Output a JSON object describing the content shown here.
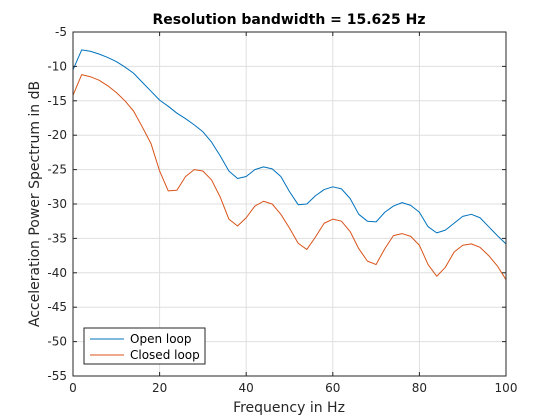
{
  "chart_data": {
    "type": "line",
    "title": "Resolution bandwidth = 15.625 Hz",
    "xlabel": "Frequency in Hz",
    "ylabel": "Acceleration Power Spectrum in dB",
    "xlim": [
      0,
      100
    ],
    "ylim": [
      -55,
      -5
    ],
    "xticks": [
      0,
      20,
      40,
      60,
      80,
      100
    ],
    "yticks": [
      -55,
      -50,
      -45,
      -40,
      -35,
      -30,
      -25,
      -20,
      -15,
      -10,
      -5
    ],
    "grid": true,
    "legend_position": "bottom-left",
    "series": [
      {
        "name": "Open loop",
        "color": "#0072BD",
        "x": [
          0,
          2,
          4,
          6,
          8,
          10,
          12,
          14,
          16,
          18,
          20,
          22,
          24,
          26,
          28,
          30,
          32,
          34,
          36,
          38,
          40,
          42,
          44,
          46,
          48,
          50,
          52,
          54,
          56,
          58,
          60,
          62,
          64,
          66,
          68,
          70,
          72,
          74,
          76,
          78,
          80,
          82,
          84,
          86,
          88,
          90,
          92,
          94,
          96,
          98,
          100
        ],
        "y": [
          -10.5,
          -7.6,
          -7.8,
          -8.2,
          -8.7,
          -9.3,
          -10.1,
          -11.0,
          -12.3,
          -13.6,
          -14.9,
          -15.8,
          -16.8,
          -17.6,
          -18.5,
          -19.5,
          -21.0,
          -23.0,
          -25.2,
          -26.3,
          -26.0,
          -25.0,
          -24.6,
          -24.9,
          -26.0,
          -28.2,
          -30.1,
          -30.0,
          -28.8,
          -27.9,
          -27.5,
          -27.8,
          -29.2,
          -31.5,
          -32.5,
          -32.6,
          -31.2,
          -30.3,
          -29.8,
          -30.2,
          -31.2,
          -33.3,
          -34.2,
          -33.8,
          -32.8,
          -31.8,
          -31.5,
          -32.0,
          -33.3,
          -34.6,
          -35.8
        ]
      },
      {
        "name": "Closed loop",
        "color": "#D95319",
        "x": [
          0,
          2,
          4,
          6,
          8,
          10,
          12,
          14,
          16,
          18,
          20,
          22,
          24,
          26,
          28,
          30,
          32,
          34,
          36,
          38,
          40,
          42,
          44,
          46,
          48,
          50,
          52,
          54,
          56,
          58,
          60,
          62,
          64,
          66,
          68,
          70,
          72,
          74,
          76,
          78,
          80,
          82,
          84,
          86,
          88,
          90,
          92,
          94,
          96,
          98,
          100
        ],
        "y": [
          -14.2,
          -11.2,
          -11.5,
          -12.0,
          -12.8,
          -13.8,
          -15.0,
          -16.5,
          -18.8,
          -21.2,
          -25.2,
          -28.1,
          -28.0,
          -26.0,
          -25.0,
          -25.2,
          -26.5,
          -29.0,
          -32.2,
          -33.2,
          -32.0,
          -30.3,
          -29.6,
          -30.0,
          -31.5,
          -33.5,
          -35.7,
          -36.6,
          -34.8,
          -32.8,
          -32.2,
          -32.5,
          -34.0,
          -36.5,
          -38.3,
          -38.8,
          -36.5,
          -34.6,
          -34.3,
          -34.7,
          -36.0,
          -38.8,
          -40.5,
          -39.2,
          -37.0,
          -36.0,
          -35.8,
          -36.3,
          -37.5,
          -39.0,
          -41.0
        ]
      }
    ]
  }
}
